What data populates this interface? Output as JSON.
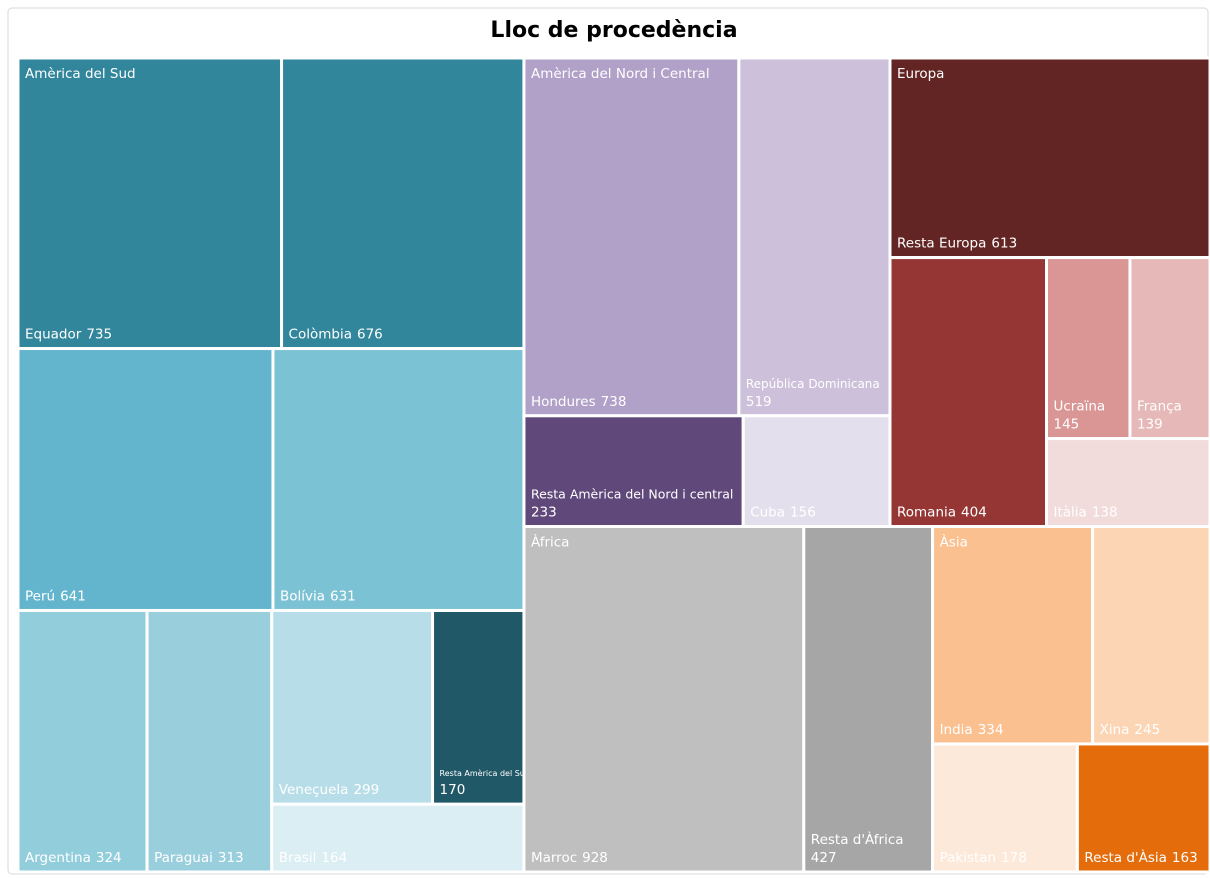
{
  "chart_data": {
    "type": "treemap",
    "title": "Lloc de procedència",
    "groups": [
      {
        "name": "Amèrica del Sud",
        "items": [
          {
            "name": "Equador",
            "value": 735,
            "color": "#31869b"
          },
          {
            "name": "Colòmbia",
            "value": 676,
            "color": "#31869b"
          },
          {
            "name": "Perú",
            "value": 641,
            "color": "#62b5cc"
          },
          {
            "name": "Bolívia",
            "value": 631,
            "color": "#7cc2d5"
          },
          {
            "name": "Argentina",
            "value": 324,
            "color": "#92cddc"
          },
          {
            "name": "Paraguai",
            "value": 313,
            "color": "#99cfdd"
          },
          {
            "name": "Veneçuela",
            "value": 299,
            "color": "#b7dde8"
          },
          {
            "name": "Resta Amèrica del Sud",
            "value": 170,
            "color": "#215867"
          },
          {
            "name": "Brasil",
            "value": 164,
            "color": "#daeef3"
          }
        ]
      },
      {
        "name": "Amèrica del Nord i Central",
        "items": [
          {
            "name": "Hondures",
            "value": 738,
            "color": "#b1a0c7"
          },
          {
            "name": "República Dominicana",
            "value": 519,
            "color": "#ccc0da"
          },
          {
            "name": "Resta Amèrica del Nord i central",
            "value": 233,
            "color": "#60497a"
          },
          {
            "name": "Cuba",
            "value": 156,
            "color": "#e4dfec"
          }
        ]
      },
      {
        "name": "Europa",
        "items": [
          {
            "name": "Resta Europa",
            "value": 613,
            "color": "#632523"
          },
          {
            "name": "Romania",
            "value": 404,
            "color": "#963634"
          },
          {
            "name": "Ucraïna",
            "value": 145,
            "color": "#da9694"
          },
          {
            "name": "França",
            "value": 139,
            "color": "#e6b8b7"
          },
          {
            "name": "Itàlia",
            "value": 138,
            "color": "#f2dcdb"
          }
        ]
      },
      {
        "name": "Àfrica",
        "items": [
          {
            "name": "Marroc",
            "value": 928,
            "color": "#bfbfbf"
          },
          {
            "name": "Resta d'Àfrica",
            "value": 427,
            "color": "#a6a6a6"
          }
        ]
      },
      {
        "name": "Àsia",
        "items": [
          {
            "name": "India",
            "value": 334,
            "color": "#fac090"
          },
          {
            "name": "Xina",
            "value": 245,
            "color": "#fcd5b4"
          },
          {
            "name": "Pakistan",
            "value": 178,
            "color": "#fde9d9"
          },
          {
            "name": "Resta d'Àsia",
            "value": 163,
            "color": "#e46c0a"
          }
        ]
      }
    ]
  }
}
